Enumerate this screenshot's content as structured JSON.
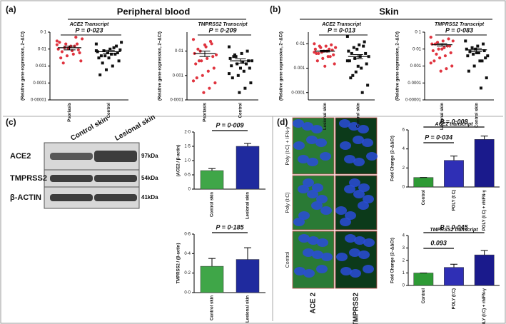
{
  "figure": {
    "panels": [
      "(a)",
      "(b)",
      "(c)",
      "(d)"
    ],
    "headings": [
      "Peripheral blood",
      "Skin"
    ],
    "blot": {
      "columns": [
        "Control skin",
        "Lesional skin"
      ],
      "rows": [
        {
          "label": "ACE2",
          "kda": "97kDa"
        },
        {
          "label": "TMPRSS2",
          "kda": "54kDa"
        },
        {
          "label": "β-ACTIN",
          "kda": "41kDa"
        }
      ]
    },
    "microscopy": {
      "rows": [
        "Poly (I:C) + IFN-γ",
        "Poly (I:C)",
        "Control"
      ],
      "columns": [
        "ACE 2",
        "TMPRSS2"
      ]
    }
  },
  "chart_data": [
    {
      "type": "scatter",
      "log_scale": true,
      "title": "ACE2 Transcript",
      "ylabel": "(Relative gene expression, 2−ΔCt)",
      "annotation": "P = 0·023",
      "ylim": [
        1e-05,
        0.1
      ],
      "yticks": [
        {
          "value": 0.1,
          "label": "0·1"
        },
        {
          "value": 0.01,
          "label": "0·01"
        },
        {
          "value": 0.001,
          "label": "0·001"
        },
        {
          "value": 0.0001,
          "label": "0·0001"
        },
        {
          "value": 1e-05,
          "label": "0·00001"
        }
      ],
      "groups": [
        {
          "name": "Psoriasis",
          "color": "#e0343f",
          "values": [
            0.03,
            0.02,
            0.015,
            0.012,
            0.01,
            0.009,
            0.008,
            0.02,
            0.025,
            0.006,
            0.005,
            0.004,
            0.003,
            0.002,
            0.015,
            0.011,
            0.007,
            0.04,
            0.05,
            0.013,
            0.0015,
            0.018
          ],
          "mean": 0.012,
          "sem": 0.003
        },
        {
          "name": "Control",
          "color": "#111111",
          "values": [
            0.02,
            0.015,
            0.01,
            0.008,
            0.007,
            0.006,
            0.005,
            0.004,
            0.003,
            0.002,
            0.001,
            0.0006,
            0.0003,
            0.009,
            0.012,
            0.006,
            0.004,
            0.025,
            0.005,
            0.003,
            0.0015,
            0.008
          ],
          "mean": 0.007,
          "sem": 0.0015
        }
      ]
    },
    {
      "type": "scatter",
      "log_scale": true,
      "title": "TMPRSS2 Transcript",
      "ylabel": "(Relative gene expression, 2−ΔCt)",
      "annotation": "P = 0·209",
      "ylim": [
        0.0001,
        0.06
      ],
      "yticks": [
        {
          "value": 0.01,
          "label": "0·01"
        },
        {
          "value": 0.001,
          "label": "0·001"
        },
        {
          "value": 0.0001,
          "label": "0·0001"
        }
      ],
      "groups": [
        {
          "name": "Psoriasis",
          "color": "#e0343f",
          "values": [
            0.03,
            0.02,
            0.015,
            0.01,
            0.008,
            0.006,
            0.005,
            0.004,
            0.003,
            0.002,
            0.0015,
            0.001,
            0.0008,
            0.0005,
            0.0003,
            0.0002,
            0.012,
            0.007,
            0.025,
            0.018,
            0.004,
            0.0006
          ],
          "mean": 0.008,
          "sem": 0.002
        },
        {
          "name": "Control",
          "color": "#111111",
          "values": [
            0.015,
            0.01,
            0.008,
            0.006,
            0.005,
            0.004,
            0.0035,
            0.003,
            0.0025,
            0.002,
            0.0015,
            0.001,
            0.0008,
            0.0005,
            0.0003,
            0.0002,
            0.006,
            0.004,
            0.003,
            0.002,
            0.007,
            0.0012
          ],
          "mean": 0.004,
          "sem": 0.0008
        }
      ]
    },
    {
      "type": "scatter",
      "log_scale": true,
      "title": "ACE2 Transcript",
      "ylabel": "(Relative gene expression, 2−ΔCt)",
      "annotation": "P = 0·013",
      "ylim": [
        5e-05,
        0.03
      ],
      "yticks": [
        {
          "value": 0.01,
          "label": "0·01"
        },
        {
          "value": 0.001,
          "label": "0·001"
        },
        {
          "value": 0.0001,
          "label": "0·0001"
        }
      ],
      "groups": [
        {
          "name": "Lesional skin",
          "color": "#e0343f",
          "values": [
            0.01,
            0.009,
            0.008,
            0.007,
            0.006,
            0.0055,
            0.005,
            0.0045,
            0.004,
            0.0035,
            0.003,
            0.0025,
            0.002,
            0.0015,
            0.006,
            0.005,
            0.004,
            0.007,
            0.003,
            0.0012,
            0.008,
            0.0045
          ],
          "mean": 0.005,
          "sem": 0.0004
        },
        {
          "name": "Control skin",
          "color": "#111111",
          "values": [
            0.02,
            0.012,
            0.009,
            0.007,
            0.005,
            0.004,
            0.003,
            0.0025,
            0.002,
            0.0015,
            0.001,
            0.0007,
            0.0004,
            0.0002,
            0.0001,
            0.006,
            0.004,
            0.003,
            0.008,
            0.0012,
            0.0005,
            0.002
          ],
          "mean": 0.003,
          "sem": 0.0006
        }
      ]
    },
    {
      "type": "scatter",
      "log_scale": true,
      "title": "TMPRSS2 Transcript",
      "ylabel": "(Relative gene expression, 2−ΔCt)",
      "annotation": "P = 0·083",
      "ylim": [
        1e-05,
        0.1
      ],
      "yticks": [
        {
          "value": 0.1,
          "label": "0·1"
        },
        {
          "value": 0.01,
          "label": "0·01"
        },
        {
          "value": 0.001,
          "label": "0·001"
        },
        {
          "value": 0.0001,
          "label": "0·0001"
        },
        {
          "value": 1e-05,
          "label": "0·00001"
        }
      ],
      "groups": [
        {
          "name": "Lesional skin",
          "color": "#e0343f",
          "values": [
            0.05,
            0.04,
            0.03,
            0.025,
            0.02,
            0.015,
            0.012,
            0.01,
            0.008,
            0.006,
            0.004,
            0.003,
            0.002,
            0.001,
            0.0007,
            0.0005,
            0.02,
            0.03,
            0.015,
            0.01,
            0.005,
            0.0015
          ],
          "mean": 0.018,
          "sem": 0.003
        },
        {
          "name": "Control skin",
          "color": "#111111",
          "values": [
            0.03,
            0.02,
            0.015,
            0.012,
            0.01,
            0.008,
            0.006,
            0.005,
            0.004,
            0.003,
            0.002,
            0.001,
            0.0005,
            0.0002,
            5e-05,
            0.01,
            0.007,
            0.004,
            0.002,
            0.006
          ],
          "mean": 0.009,
          "sem": 0.002
        }
      ]
    },
    {
      "type": "bar",
      "ylabel": "(ACE2 / β-actin)",
      "annotations": [
        "P = 0·009"
      ],
      "categories": [
        "Control skin",
        "Lesional skin"
      ],
      "values": [
        0.65,
        1.5
      ],
      "errors": [
        0.07,
        0.1
      ],
      "colors": [
        "#3fa648",
        "#1f2a9e"
      ],
      "ylim": [
        0,
        2
      ],
      "yticks": [
        {
          "value": 0,
          "label": "0"
        },
        {
          "value": 0.5,
          "label": "0·5"
        },
        {
          "value": 1,
          "label": "1·0"
        },
        {
          "value": 1.5,
          "label": "1·5"
        },
        {
          "value": 2,
          "label": "2·0"
        }
      ]
    },
    {
      "type": "bar",
      "ylabel": "TMPRSS2 / (β-actin)",
      "annotations": [
        "P = 0·185"
      ],
      "categories": [
        "Control skin",
        "Lesional skin"
      ],
      "values": [
        0.27,
        0.34
      ],
      "errors": [
        0.08,
        0.12
      ],
      "colors": [
        "#3fa648",
        "#1f2a9e"
      ],
      "ylim": [
        0,
        0.6
      ],
      "yticks": [
        {
          "value": 0,
          "label": "0·0"
        },
        {
          "value": 0.2,
          "label": "0·2"
        },
        {
          "value": 0.4,
          "label": "0·4"
        },
        {
          "value": 0.6,
          "label": "0·6"
        }
      ]
    },
    {
      "type": "bar",
      "title": "ACE2 transcript",
      "ylabel": "Fold Change (2−ΔΔCt)",
      "annotations": [
        "P = 0·034",
        "P = 0·008"
      ],
      "categories": [
        "Control",
        "POLY (I:C)",
        "POLY (I:C) + rhIFN-γ"
      ],
      "values": [
        1,
        2.8,
        5
      ],
      "errors": [
        0,
        0.45,
        0.35
      ],
      "colors": [
        "#2e9a35",
        "#2f2fb5",
        "#1a1a8c"
      ],
      "ylim": [
        0,
        6
      ],
      "yticks": [
        0,
        2,
        4,
        6
      ]
    },
    {
      "type": "bar",
      "title": "TMPRSS2 transcript",
      "ylabel": "Fold Change (2−ΔΔCt)",
      "annotations": [
        "0.093",
        "P = 0·045"
      ],
      "categories": [
        "Control",
        "POLY (I:C)",
        "POLY (I:C) + rhIFN-γ"
      ],
      "values": [
        1,
        1.45,
        2.45
      ],
      "errors": [
        0,
        0.25,
        0.35
      ],
      "colors": [
        "#2e9a35",
        "#2f2fb5",
        "#1a1a8c"
      ],
      "ylim": [
        0,
        4
      ],
      "yticks": [
        0,
        1,
        2,
        3,
        4
      ]
    }
  ]
}
